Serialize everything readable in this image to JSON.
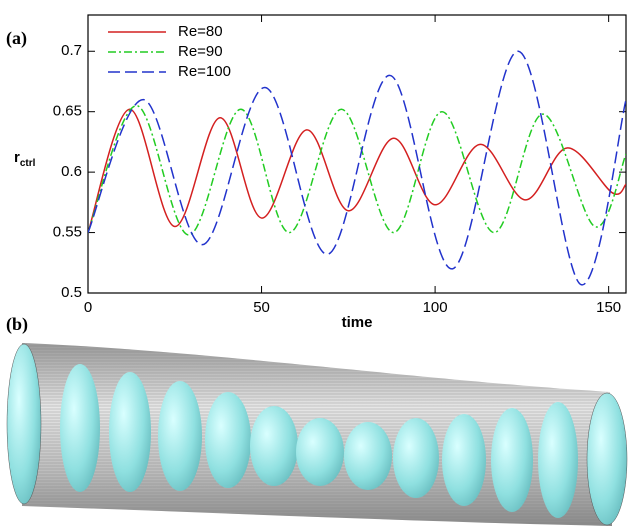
{
  "panel_labels": [
    "(a)",
    "(b)"
  ],
  "chart_data": {
    "type": "line",
    "xlabel": "time",
    "ylabel": {
      "main": "r",
      "sub": "ctrl"
    },
    "xlim": [
      0,
      155
    ],
    "ylim": [
      0.5,
      0.73
    ],
    "xticks": [
      0,
      50,
      100,
      150
    ],
    "yticks": [
      0.5,
      0.55,
      0.6,
      0.65,
      0.7
    ],
    "legend": "upper left",
    "series": [
      {
        "name": "Re=80",
        "color": "#d42020",
        "dash": "solid",
        "x": [
          0,
          12,
          25,
          38,
          50,
          63,
          75,
          88,
          100,
          113,
          126,
          138,
          151,
          155
        ],
        "values": [
          0.55,
          0.652,
          0.555,
          0.645,
          0.562,
          0.635,
          0.568,
          0.628,
          0.573,
          0.623,
          0.577,
          0.62,
          0.583,
          0.59
        ]
      },
      {
        "name": "Re=90",
        "color": "#22cc22",
        "dash": "dashdot",
        "x": [
          0,
          14,
          29,
          44,
          58,
          73,
          88,
          102,
          117,
          131,
          146,
          155
        ],
        "values": [
          0.55,
          0.655,
          0.548,
          0.652,
          0.55,
          0.652,
          0.55,
          0.65,
          0.55,
          0.648,
          0.555,
          0.615
        ]
      },
      {
        "name": "Re=100",
        "color": "#2233cc",
        "dash": "dashed",
        "x": [
          0,
          16,
          33,
          51,
          69,
          87,
          105,
          124,
          142,
          155
        ],
        "values": [
          0.55,
          0.66,
          0.54,
          0.67,
          0.532,
          0.68,
          0.52,
          0.7,
          0.507,
          0.66
        ]
      }
    ]
  }
}
